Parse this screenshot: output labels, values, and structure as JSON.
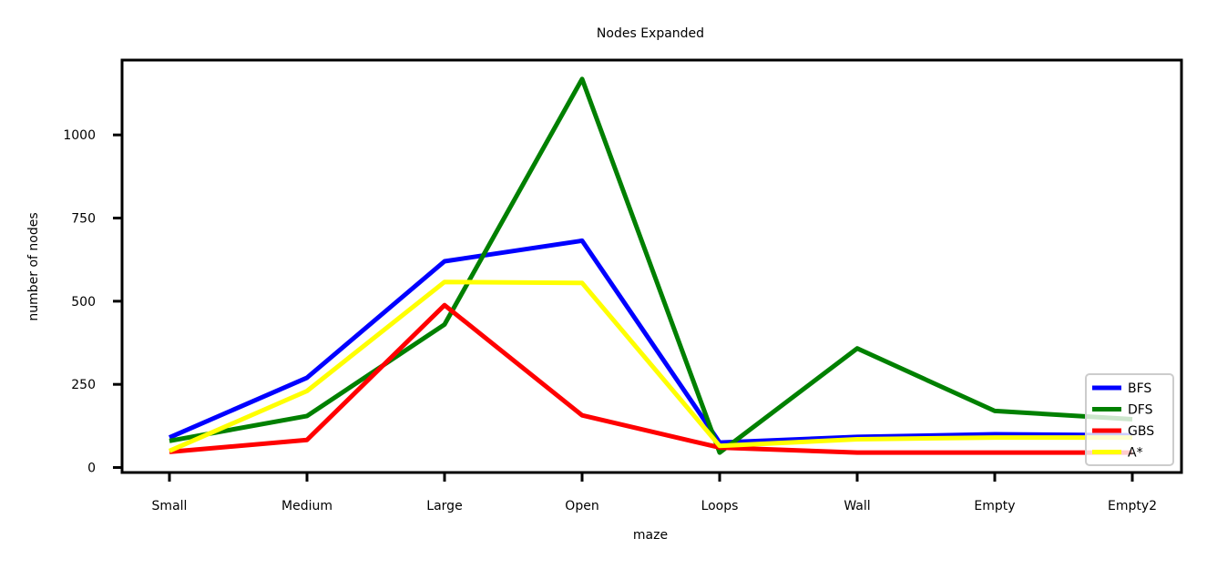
{
  "chart_data": {
    "type": "line",
    "title": "Nodes Expanded",
    "xlabel": "maze",
    "ylabel": "number of nodes",
    "categories": [
      "Small",
      "Medium",
      "Large",
      "Open",
      "Loops",
      "Wall",
      "Empty",
      "Empty2"
    ],
    "yticks": [
      0,
      250,
      500,
      750,
      1000
    ],
    "ylim": [
      -15,
      1225
    ],
    "grid": false,
    "legend_position": "bottom-right",
    "series": [
      {
        "name": "BFS",
        "color": "#0000ff",
        "values": [
          90,
          270,
          620,
          682,
          75,
          92,
          100,
          97
        ]
      },
      {
        "name": "DFS",
        "color": "#008000",
        "values": [
          80,
          155,
          430,
          1168,
          45,
          358,
          170,
          145
        ]
      },
      {
        "name": "GBS",
        "color": "#ff0000",
        "values": [
          47,
          83,
          488,
          157,
          60,
          45,
          45,
          45
        ]
      },
      {
        "name": "A*",
        "color": "#ffff00",
        "values": [
          50,
          230,
          558,
          555,
          65,
          85,
          90,
          90
        ]
      }
    ]
  }
}
